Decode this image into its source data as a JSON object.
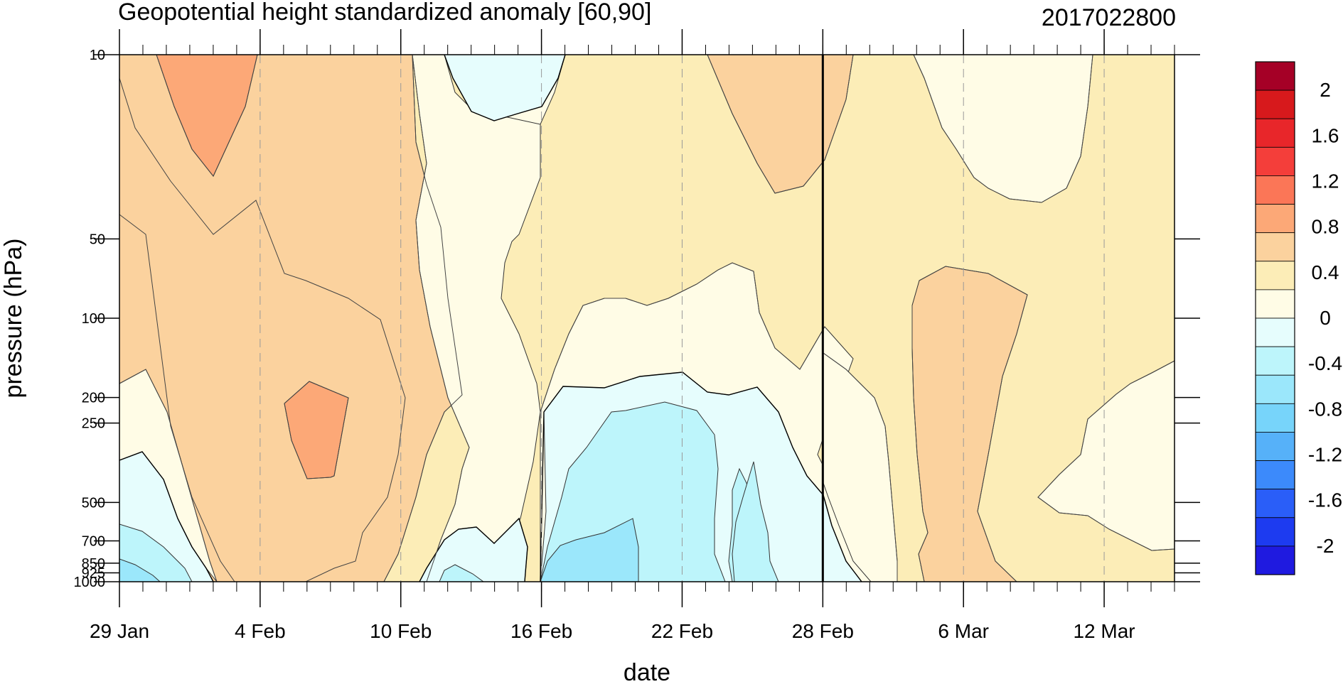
{
  "chart_data": {
    "type": "heatmap",
    "title": "Geopotential height standardized anomaly [60,90]",
    "date_label": "2017022800",
    "xlabel": "date",
    "ylabel": "pressure (hPa)",
    "x_ticks": [
      "29 Jan",
      "4 Feb",
      "10 Feb",
      "16 Feb",
      "22 Feb",
      "28 Feb",
      "6 Mar",
      "12 Mar"
    ],
    "x_tick_days": [
      0,
      6,
      12,
      18,
      24,
      30,
      36,
      42
    ],
    "x_range_days": [
      0,
      45
    ],
    "current_date_day": 30,
    "y_ticks": [
      "10",
      "50",
      "100",
      "200",
      "250",
      "500",
      "700",
      "850",
      "925",
      "1000"
    ],
    "y_tick_values": [
      10,
      50,
      100,
      200,
      250,
      500,
      700,
      850,
      925,
      1000
    ],
    "y_range": [
      1000,
      10
    ],
    "y_scale": "log",
    "colorbar": {
      "labels": [
        "2",
        "1.6",
        "1.2",
        "0.8",
        "0.4",
        "0",
        "-0.4",
        "-0.8",
        "-1.2",
        "-1.6",
        "-2"
      ],
      "label_values": [
        2,
        1.6,
        1.2,
        0.8,
        0.4,
        0,
        -0.4,
        -0.8,
        -1.2,
        -1.6,
        -2
      ],
      "colors": [
        "#a50026",
        "#d7191c",
        "#e8262a",
        "#f43e3a",
        "#fb7657",
        "#fca877",
        "#fbd29e",
        "#fcedb7",
        "#fffce6",
        "#e6fdfd",
        "#bdf5fb",
        "#9be7fb",
        "#77d4fa",
        "#56b1f9",
        "#3c8afb",
        "#2a5ef8",
        "#1d3bf0",
        "#1f1ae0"
      ]
    },
    "regions": [
      {
        "level": 0.2,
        "color": "#fcedb7"
      },
      {
        "level": 0.0,
        "color": "#fffce6"
      },
      {
        "level": -0.2,
        "color": "#e6fdfd"
      },
      {
        "level": -0.4,
        "color": "#bdf5fb"
      },
      {
        "level": -0.6,
        "color": "#9be7fb"
      },
      {
        "level": 0.4,
        "color": "#fbd29e"
      },
      {
        "level": 0.6,
        "color": "#fca877"
      }
    ]
  }
}
